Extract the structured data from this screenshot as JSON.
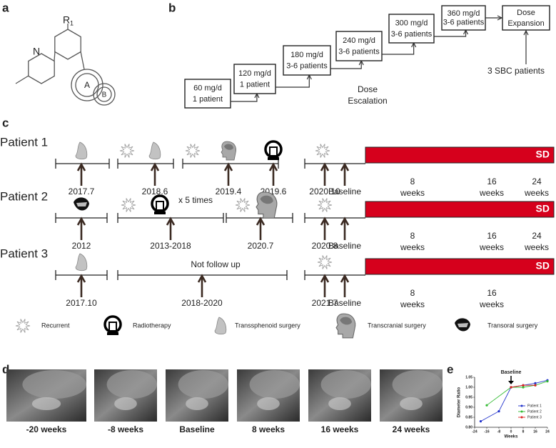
{
  "panel_labels": [
    "a",
    "b",
    "c",
    "d",
    "e"
  ],
  "structure": {
    "r_label": "R",
    "r_subscript": "1",
    "n_label": "N",
    "ring_a": "A",
    "ring_b": "B"
  },
  "dose_escalation": {
    "steps": [
      {
        "dose": "60 mg/d",
        "patients": "1 patient"
      },
      {
        "dose": "120 mg/d",
        "patients": "1 patient"
      },
      {
        "dose": "180 mg/d",
        "patients": "3-6 patients"
      },
      {
        "dose": "240 mg/d",
        "patients": "3-6 patients"
      },
      {
        "dose": "300 mg/d",
        "patients": "3-6 patients"
      },
      {
        "dose": "360 mg/d",
        "patients": "3-6 patients"
      }
    ],
    "expansion": [
      "Dose",
      "Expansion"
    ],
    "escalation_label": [
      "Dose",
      "Escalation"
    ],
    "expansion_note": "3 SBC patients"
  },
  "timeline": {
    "patients": [
      {
        "name": "Patient 1",
        "events": [
          "2017.7",
          "2018.6",
          "2019.4",
          "2019.6",
          "2020.10",
          "Baseline"
        ],
        "status": "SD",
        "weeks": [
          [
            "8",
            "weeks"
          ],
          [
            "16",
            "weeks"
          ],
          [
            "24",
            "weeks"
          ]
        ]
      },
      {
        "name": "Patient 2",
        "events": [
          "2012",
          "2013-2018",
          "2020.7",
          "2020.8",
          "Baseline"
        ],
        "status": "SD",
        "note": "x 5 times",
        "weeks": [
          [
            "8",
            "weeks"
          ],
          [
            "16",
            "weeks"
          ],
          [
            "24",
            "weeks"
          ]
        ]
      },
      {
        "name": "Patient 3",
        "events": [
          "2017.10",
          "2018-2020",
          "2021.7",
          "Baseline"
        ],
        "status": "SD",
        "note": "Not follow up",
        "weeks": [
          [
            "8",
            "weeks"
          ],
          [
            "16",
            "weeks"
          ]
        ]
      }
    ],
    "legend": [
      "Recurrent",
      "Radiotherapy",
      "Transsphenoid surgery",
      "Transcranial surgery",
      "Transoral surgery"
    ]
  },
  "mri": {
    "captions": [
      "-20 weeks",
      "-8 weeks",
      "Baseline",
      "8 weeks",
      "16 weeks",
      "24 weeks"
    ]
  },
  "chart_data": {
    "type": "line",
    "y_label": "Diameter Ratio",
    "x_label": "Weeks",
    "annotation": "Baseline",
    "xlim": [
      -24,
      24
    ],
    "xticks": [
      -24,
      -16,
      -8,
      0,
      8,
      16,
      24
    ],
    "ylim": [
      0.8,
      1.05
    ],
    "yticks": [
      {
        "value": 0.8,
        "label": "0.80"
      },
      0.85,
      {
        "value": 0.9,
        "label": "0.90"
      },
      0.95,
      {
        "value": 1.0,
        "label": "1.00"
      },
      1.05
    ],
    "series": [
      {
        "name": "Patient 1",
        "color": "#2233cc",
        "x": [
          -20,
          -8,
          0,
          8,
          16,
          24
        ],
        "values": [
          0.83,
          0.88,
          1.0,
          1.01,
          1.02,
          1.035
        ]
      },
      {
        "name": "Patient 2",
        "color": "#33bb33",
        "x": [
          -16,
          0,
          8,
          16,
          24
        ],
        "values": [
          0.91,
          1.0,
          1.0,
          1.01,
          1.03
        ]
      },
      {
        "name": "Patient 3",
        "color": "#dd2222",
        "x": [
          0,
          8,
          16
        ],
        "values": [
          1.0,
          1.01,
          1.01
        ]
      }
    ]
  }
}
